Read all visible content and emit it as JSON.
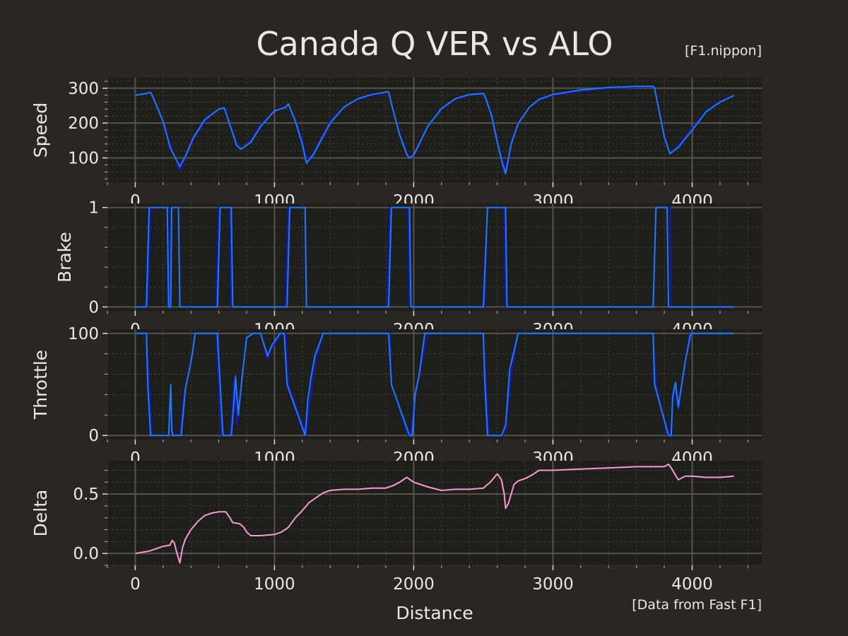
{
  "title": "Canada Q VER vs ALO",
  "credit_top": "[F1.nippon]",
  "credit_bottom": "[Data from Fast F1]",
  "xlabel": "Distance",
  "colors": {
    "background": "#282724",
    "panel": "#1e1e1b",
    "grid_major": "#57534c",
    "grid_minor": "#403d38",
    "driver1": "#1b7cff",
    "driver2": "#1515c8",
    "delta": "#f79ad2",
    "text": "#e8e8e8"
  },
  "chart_data": [
    {
      "type": "line",
      "ylabel": "Speed",
      "xlim": [
        -200,
        4500
      ],
      "ylim": [
        30,
        330
      ],
      "xticks": [
        "0",
        "1000",
        "2000",
        "3000",
        "4000"
      ],
      "yticks": [
        100,
        200,
        300
      ],
      "ytick_labels": [
        "100",
        "200",
        "300"
      ],
      "grid": true,
      "series": [
        {
          "color": "driver2",
          "x": [
            0,
            80,
            110,
            130,
            200,
            250,
            320,
            360,
            420,
            500,
            600,
            640,
            700,
            730,
            760,
            830,
            900,
            1000,
            1080,
            1100,
            1150,
            1200,
            1230,
            1280,
            1400,
            1500,
            1600,
            1700,
            1820,
            1840,
            1900,
            1950,
            1970,
            2000,
            2100,
            2200,
            2300,
            2400,
            2500,
            2520,
            2560,
            2600,
            2640,
            2660,
            2700,
            2750,
            2830,
            2900,
            3000,
            3200,
            3400,
            3600,
            3720,
            3730,
            3800,
            3840,
            3900,
            4000,
            4100,
            4200,
            4300
          ],
          "y": [
            280,
            285,
            288,
            270,
            205,
            140,
            65,
            100,
            155,
            205,
            240,
            245,
            175,
            140,
            125,
            150,
            195,
            235,
            248,
            252,
            210,
            150,
            95,
            115,
            205,
            248,
            268,
            280,
            288,
            250,
            170,
            115,
            100,
            105,
            188,
            240,
            268,
            280,
            283,
            270,
            225,
            150,
            90,
            65,
            145,
            200,
            245,
            265,
            280,
            292,
            300,
            302,
            303,
            300,
            165,
            112,
            135,
            185,
            235,
            262,
            279
          ]
        },
        {
          "color": "driver1",
          "x": [
            0,
            80,
            110,
            130,
            200,
            250,
            320,
            360,
            420,
            500,
            600,
            640,
            700,
            730,
            760,
            830,
            900,
            1000,
            1080,
            1100,
            1150,
            1200,
            1230,
            1280,
            1400,
            1500,
            1600,
            1700,
            1820,
            1840,
            1900,
            1950,
            1970,
            2000,
            2100,
            2200,
            2300,
            2400,
            2500,
            2520,
            2560,
            2600,
            2640,
            2660,
            2700,
            2750,
            2830,
            2900,
            3000,
            3200,
            3400,
            3600,
            3720,
            3730,
            3800,
            3840,
            3900,
            4000,
            4100,
            4200,
            4300
          ],
          "y": [
            280,
            285,
            288,
            272,
            205,
            130,
            75,
            105,
            160,
            210,
            240,
            243,
            170,
            135,
            125,
            145,
            190,
            235,
            245,
            255,
            205,
            140,
            85,
            110,
            200,
            246,
            270,
            282,
            290,
            255,
            165,
            110,
            100,
            108,
            190,
            242,
            270,
            282,
            285,
            268,
            220,
            145,
            80,
            55,
            140,
            198,
            245,
            268,
            282,
            295,
            302,
            305,
            305,
            300,
            160,
            112,
            130,
            180,
            232,
            260,
            279
          ]
        }
      ]
    },
    {
      "type": "line",
      "ylabel": "Brake",
      "xlim": [
        -200,
        4500
      ],
      "ylim": [
        -0.04,
        1.04
      ],
      "xticks": [
        "0",
        "1000",
        "2000",
        "3000",
        "4000"
      ],
      "yticks": [
        0,
        1
      ],
      "ytick_labels": [
        "0",
        "1"
      ],
      "grid": true,
      "series": [
        {
          "color": "driver2",
          "x": [
            0,
            90,
            110,
            230,
            235,
            250,
            255,
            270,
            275,
            310,
            320,
            580,
            600,
            680,
            690,
            1080,
            1100,
            1220,
            1230,
            1810,
            1830,
            1960,
            1970,
            2510,
            2530,
            2650,
            2660,
            3720,
            3740,
            3840,
            3850,
            4300
          ],
          "y": [
            0,
            0,
            1,
            1,
            0,
            0,
            1,
            1,
            1,
            1,
            0,
            0,
            1,
            1,
            0,
            0,
            1,
            1,
            0,
            0,
            1,
            1,
            0,
            0,
            1,
            1,
            0,
            0,
            1,
            1,
            0,
            0
          ]
        },
        {
          "color": "driver1",
          "x": [
            0,
            80,
            100,
            230,
            240,
            255,
            262,
            270,
            280,
            310,
            320,
            590,
            610,
            690,
            700,
            1090,
            1110,
            1220,
            1230,
            1820,
            1840,
            1970,
            1980,
            2500,
            2530,
            2660,
            2670,
            3720,
            3740,
            3820,
            3830,
            4300
          ],
          "y": [
            0,
            0,
            1,
            1,
            0,
            0,
            1,
            1,
            1,
            1,
            0,
            0,
            1,
            1,
            0,
            0,
            1,
            1,
            0,
            0,
            1,
            1,
            0,
            0,
            1,
            1,
            0,
            0,
            1,
            1,
            0,
            0
          ]
        }
      ]
    },
    {
      "type": "line",
      "ylabel": "Throttle",
      "xlim": [
        -200,
        4500
      ],
      "ylim": [
        -4,
        104
      ],
      "xticks": [
        "0",
        "1000",
        "2000",
        "3000",
        "4000"
      ],
      "yticks": [
        0,
        100
      ],
      "ytick_labels": [
        "0",
        "100"
      ],
      "grid": true,
      "series": [
        {
          "color": "driver2",
          "x": [
            0,
            80,
            100,
            120,
            240,
            255,
            265,
            275,
            320,
            350,
            380,
            410,
            430,
            580,
            600,
            620,
            680,
            700,
            710,
            730,
            760,
            800,
            850,
            900,
            950,
            980,
            1050,
            1080,
            1100,
            1230,
            1250,
            1270,
            1300,
            1350,
            1830,
            1840,
            1960,
            1980,
            2000,
            2050,
            2100,
            2500,
            2520,
            2540,
            2640,
            2660,
            2700,
            2750,
            3720,
            3740,
            3820,
            3840,
            3860,
            3880,
            3900,
            3950,
            3980,
            4300
          ],
          "y": [
            100,
            100,
            50,
            0,
            0,
            48,
            5,
            0,
            0,
            40,
            60,
            80,
            100,
            100,
            50,
            0,
            0,
            30,
            55,
            10,
            50,
            95,
            100,
            100,
            75,
            85,
            100,
            100,
            50,
            0,
            30,
            50,
            75,
            100,
            100,
            50,
            0,
            0,
            30,
            65,
            100,
            100,
            50,
            0,
            0,
            5,
            60,
            100,
            100,
            50,
            0,
            0,
            30,
            50,
            25,
            70,
            100,
            100
          ]
        },
        {
          "color": "driver1",
          "x": [
            0,
            80,
            90,
            110,
            240,
            255,
            262,
            270,
            330,
            360,
            390,
            410,
            430,
            590,
            610,
            630,
            690,
            710,
            720,
            740,
            770,
            800,
            850,
            900,
            950,
            980,
            1040,
            1070,
            1090,
            1220,
            1240,
            1260,
            1290,
            1350,
            1820,
            1840,
            1970,
            1990,
            2010,
            2040,
            2080,
            2500,
            2510,
            2530,
            2630,
            2660,
            2690,
            2750,
            3720,
            3730,
            3830,
            3850,
            3860,
            3880,
            3900,
            3950,
            3990,
            4300
          ],
          "y": [
            100,
            100,
            50,
            0,
            0,
            50,
            5,
            0,
            0,
            45,
            65,
            80,
            100,
            100,
            50,
            0,
            0,
            35,
            58,
            20,
            60,
            96,
            100,
            100,
            78,
            88,
            100,
            100,
            50,
            0,
            35,
            55,
            78,
            100,
            100,
            50,
            0,
            0,
            40,
            60,
            100,
            100,
            55,
            0,
            0,
            10,
            65,
            100,
            100,
            50,
            0,
            0,
            38,
            52,
            28,
            72,
            100,
            100
          ]
        }
      ]
    },
    {
      "type": "line",
      "ylabel": "Delta",
      "xlim": [
        -200,
        4500
      ],
      "ylim": [
        -0.1,
        0.78
      ],
      "xticks": [
        "0",
        "1000",
        "2000",
        "3000",
        "4000"
      ],
      "yticks": [
        0.0,
        0.5
      ],
      "ytick_labels": [
        "0.0",
        "0.5"
      ],
      "grid": true,
      "series": [
        {
          "color": "delta",
          "x": [
            0,
            50,
            100,
            150,
            200,
            250,
            265,
            280,
            300,
            320,
            340,
            360,
            400,
            450,
            500,
            550,
            600,
            650,
            680,
            700,
            750,
            780,
            800,
            830,
            850,
            900,
            1000,
            1050,
            1100,
            1150,
            1200,
            1250,
            1300,
            1350,
            1400,
            1500,
            1600,
            1700,
            1800,
            1850,
            1900,
            1950,
            2000,
            2100,
            2200,
            2300,
            2400,
            2500,
            2550,
            2600,
            2630,
            2650,
            2660,
            2680,
            2700,
            2720,
            2750,
            2800,
            2850,
            2900,
            2950,
            3000,
            3200,
            3400,
            3600,
            3700,
            3800,
            3830,
            3850,
            3880,
            3900,
            3950,
            4000,
            4100,
            4200,
            4300
          ],
          "y": [
            0.0,
            0.01,
            0.02,
            0.04,
            0.06,
            0.07,
            0.11,
            0.09,
            0.0,
            -0.08,
            0.05,
            0.12,
            0.2,
            0.27,
            0.32,
            0.34,
            0.35,
            0.35,
            0.3,
            0.26,
            0.25,
            0.22,
            0.18,
            0.15,
            0.15,
            0.15,
            0.16,
            0.18,
            0.22,
            0.3,
            0.36,
            0.43,
            0.47,
            0.51,
            0.53,
            0.54,
            0.54,
            0.55,
            0.55,
            0.57,
            0.6,
            0.64,
            0.6,
            0.56,
            0.53,
            0.54,
            0.54,
            0.55,
            0.6,
            0.67,
            0.62,
            0.5,
            0.38,
            0.42,
            0.5,
            0.58,
            0.61,
            0.63,
            0.66,
            0.7,
            0.7,
            0.7,
            0.71,
            0.72,
            0.73,
            0.73,
            0.73,
            0.75,
            0.72,
            0.66,
            0.62,
            0.65,
            0.65,
            0.64,
            0.64,
            0.65
          ]
        }
      ]
    }
  ]
}
